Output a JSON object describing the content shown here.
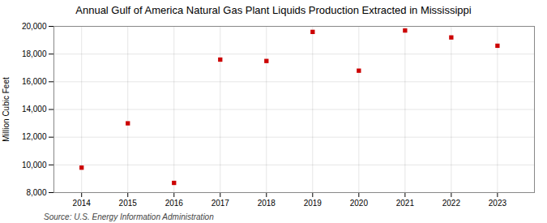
{
  "chart_data": {
    "type": "scatter",
    "title": "Annual Gulf of America Natural Gas Plant Liquids Production Extracted in Mississippi",
    "ylabel": "Million Cubic Feet",
    "source": "Source: U.S. Energy Information Administration",
    "x": [
      2014,
      2015,
      2016,
      2017,
      2018,
      2019,
      2020,
      2021,
      2022,
      2023
    ],
    "values": [
      9800,
      13000,
      8700,
      17600,
      17500,
      19600,
      16800,
      19700,
      19200,
      18600
    ],
    "color": "#cc0000",
    "marker": "square",
    "xlim": [
      2013.4,
      2023.8
    ],
    "xticks": [
      2014,
      2015,
      2016,
      2017,
      2018,
      2019,
      2020,
      2021,
      2022,
      2023
    ],
    "ylim": [
      8000,
      20000
    ],
    "yticks": [
      {
        "value": 8000,
        "label": "8,000"
      },
      {
        "value": 10000,
        "label": "10,000"
      },
      {
        "value": 12000,
        "label": "12,000"
      },
      {
        "value": 14000,
        "label": "14,000"
      },
      {
        "value": 16000,
        "label": "16,000"
      },
      {
        "value": 18000,
        "label": "18,000"
      },
      {
        "value": 20000,
        "label": "20,000"
      }
    ],
    "grid": true
  }
}
